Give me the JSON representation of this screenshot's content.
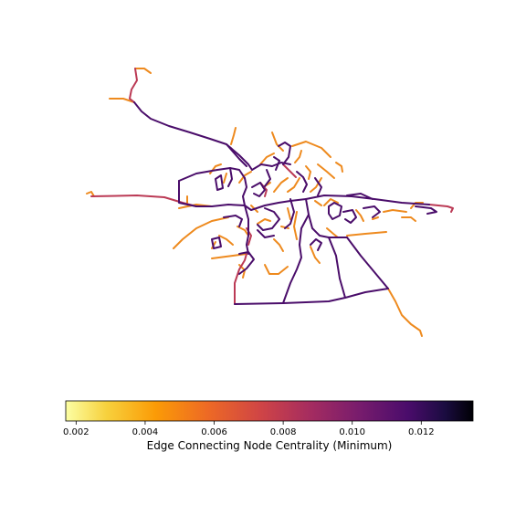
{
  "colorbar": {
    "label": "Edge Connecting Node Centrality (Minimum)",
    "min": 0.0017,
    "max": 0.0135,
    "ticks": [
      "0.002",
      "0.004",
      "0.006",
      "0.008",
      "0.010",
      "0.012"
    ],
    "tick_values": [
      0.002,
      0.004,
      0.006,
      0.008,
      0.01,
      0.012
    ],
    "colormap": "inferno_r"
  },
  "colors": {
    "low": "#ee8a1e",
    "mid": "#bb3a55",
    "high": "#4a0d6a"
  }
}
